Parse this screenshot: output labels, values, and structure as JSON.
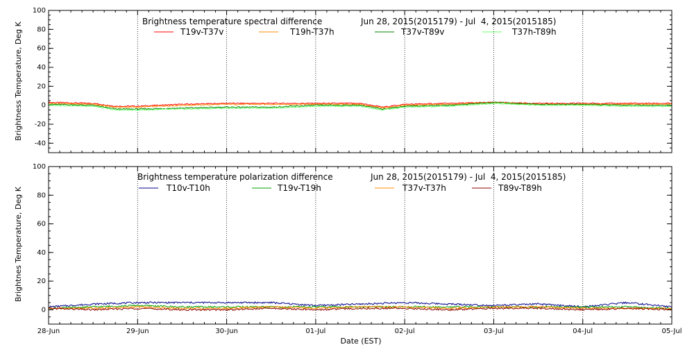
{
  "chart_data": [
    {
      "type": "line",
      "title": "Brightness temperature spectral difference",
      "date_range": "Jun 28, 2015(2015179) - Jul  4, 2015(2015185)",
      "ylabel": "Brightness Temperature, Deg K",
      "xlabel": "",
      "xlim": [
        "2015-06-28",
        "2015-07-05"
      ],
      "ylim": [
        -50,
        100
      ],
      "yticks": [
        -40,
        -20,
        0,
        20,
        40,
        60,
        80,
        100
      ],
      "grid": true,
      "legend_position": "top-center",
      "series": [
        {
          "name": "T19v-T37v",
          "color": "#ff0000",
          "x": [
            "2015-06-28",
            "2015-06-28 12:00",
            "2015-06-28 18:00",
            "2015-06-29",
            "2015-06-29 12:00",
            "2015-06-30",
            "2015-06-30 12:00",
            "2015-07-01",
            "2015-07-01 12:00",
            "2015-07-01 18:00",
            "2015-07-02",
            "2015-07-02 12:00",
            "2015-07-03",
            "2015-07-03 12:00",
            "2015-07-04",
            "2015-07-04 12:00",
            "2015-07-05"
          ],
          "values": [
            3,
            2,
            -1,
            -1,
            1,
            2,
            2,
            2,
            2,
            -2,
            1,
            2,
            3,
            2,
            2,
            2,
            2
          ]
        },
        {
          "name": "T19h-T37h",
          "color": "#ff8c00",
          "x": [
            "2015-06-28",
            "2015-06-28 12:00",
            "2015-06-28 18:00",
            "2015-06-29",
            "2015-06-29 12:00",
            "2015-06-30",
            "2015-06-30 12:00",
            "2015-07-01",
            "2015-07-01 12:00",
            "2015-07-01 18:00",
            "2015-07-02",
            "2015-07-02 12:00",
            "2015-07-03",
            "2015-07-03 12:00",
            "2015-07-04",
            "2015-07-04 12:00",
            "2015-07-05"
          ],
          "values": [
            2,
            1,
            -2,
            -2,
            0,
            1,
            1,
            1,
            1,
            -3,
            0,
            1,
            3,
            1,
            1,
            1,
            1
          ]
        },
        {
          "name": "T37v-T89v",
          "color": "#008000",
          "x": [
            "2015-06-28",
            "2015-06-28 12:00",
            "2015-06-28 18:00",
            "2015-06-29",
            "2015-06-29 12:00",
            "2015-06-30",
            "2015-06-30 12:00",
            "2015-07-01",
            "2015-07-01 12:00",
            "2015-07-01 18:00",
            "2015-07-02",
            "2015-07-02 12:00",
            "2015-07-03",
            "2015-07-03 12:00",
            "2015-07-04",
            "2015-07-04 12:00",
            "2015-07-05"
          ],
          "values": [
            1,
            0,
            -4,
            -4,
            -3,
            -2,
            -2,
            0,
            0,
            -4,
            -1,
            0,
            3,
            1,
            1,
            0,
            0
          ]
        },
        {
          "name": "T37h-T89h",
          "color": "#66ff66",
          "x": [
            "2015-06-28",
            "2015-06-28 12:00",
            "2015-06-28 18:00",
            "2015-06-29",
            "2015-06-29 12:00",
            "2015-06-30",
            "2015-06-30 12:00",
            "2015-07-01",
            "2015-07-01 12:00",
            "2015-07-01 18:00",
            "2015-07-02",
            "2015-07-02 12:00",
            "2015-07-03",
            "2015-07-03 12:00",
            "2015-07-04",
            "2015-07-04 12:00",
            "2015-07-05"
          ],
          "values": [
            0,
            -1,
            -5,
            -5,
            -4,
            -3,
            -3,
            -1,
            -1,
            -5,
            -2,
            -1,
            2,
            0,
            0,
            -1,
            -1
          ]
        }
      ]
    },
    {
      "type": "line",
      "title": "Brightness temperature polarization difference",
      "date_range": "Jun 28, 2015(2015179) - Jul  4, 2015(2015185)",
      "ylabel": "Brightnes Temperature, Deg K",
      "xlabel": "Date (EST)",
      "xlim": [
        "2015-06-28",
        "2015-07-05"
      ],
      "ylim": [
        -10,
        100
      ],
      "yticks": [
        0,
        20,
        40,
        60,
        80,
        100
      ],
      "xticks": [
        "28-Jun",
        "29-Jun",
        "30-Jun",
        "01-Jul",
        "02-Jul",
        "03-Jul",
        "04-Jul",
        "05-Jul"
      ],
      "grid": true,
      "legend_position": "top-center",
      "series": [
        {
          "name": "T10v-T10h",
          "color": "#00008b",
          "x": [
            "2015-06-28",
            "2015-06-28 12:00",
            "2015-06-29",
            "2015-06-29 12:00",
            "2015-06-30",
            "2015-06-30 12:00",
            "2015-07-01",
            "2015-07-01 12:00",
            "2015-07-02",
            "2015-07-02 12:00",
            "2015-07-03",
            "2015-07-03 12:00",
            "2015-07-04",
            "2015-07-04 12:00",
            "2015-07-05"
          ],
          "values": [
            2,
            4,
            5,
            5,
            5,
            5,
            3,
            4,
            5,
            4,
            3,
            4,
            2,
            5,
            2
          ]
        },
        {
          "name": "T19v-T19h",
          "color": "#00a000",
          "x": [
            "2015-06-28",
            "2015-06-28 12:00",
            "2015-06-29",
            "2015-06-29 12:00",
            "2015-06-30",
            "2015-06-30 12:00",
            "2015-07-01",
            "2015-07-01 12:00",
            "2015-07-02",
            "2015-07-02 12:00",
            "2015-07-03",
            "2015-07-03 12:00",
            "2015-07-04",
            "2015-07-04 12:00",
            "2015-07-05"
          ],
          "values": [
            1,
            2,
            3,
            2,
            2,
            2,
            2,
            2,
            2,
            2,
            2,
            2,
            2,
            2,
            1
          ]
        },
        {
          "name": "T37v-T37h",
          "color": "#ff8c00",
          "x": [
            "2015-06-28",
            "2015-06-28 12:00",
            "2015-06-29",
            "2015-06-29 12:00",
            "2015-06-30",
            "2015-06-30 12:00",
            "2015-07-01",
            "2015-07-01 12:00",
            "2015-07-02",
            "2015-07-02 12:00",
            "2015-07-03",
            "2015-07-03 12:00",
            "2015-07-04",
            "2015-07-04 12:00",
            "2015-07-05"
          ],
          "values": [
            1,
            1,
            2,
            1,
            1,
            2,
            1,
            2,
            2,
            1,
            2,
            2,
            1,
            1,
            1
          ]
        },
        {
          "name": "T89v-T89h",
          "color": "#8b0000",
          "x": [
            "2015-06-28",
            "2015-06-28 12:00",
            "2015-06-29",
            "2015-06-29 12:00",
            "2015-06-30",
            "2015-06-30 12:00",
            "2015-07-01",
            "2015-07-01 12:00",
            "2015-07-02",
            "2015-07-02 12:00",
            "2015-07-03",
            "2015-07-03 12:00",
            "2015-07-04",
            "2015-07-04 12:00",
            "2015-07-05"
          ],
          "values": [
            1,
            0,
            1,
            0,
            0,
            1,
            0,
            1,
            1,
            0,
            1,
            1,
            0,
            1,
            0
          ]
        }
      ]
    }
  ]
}
